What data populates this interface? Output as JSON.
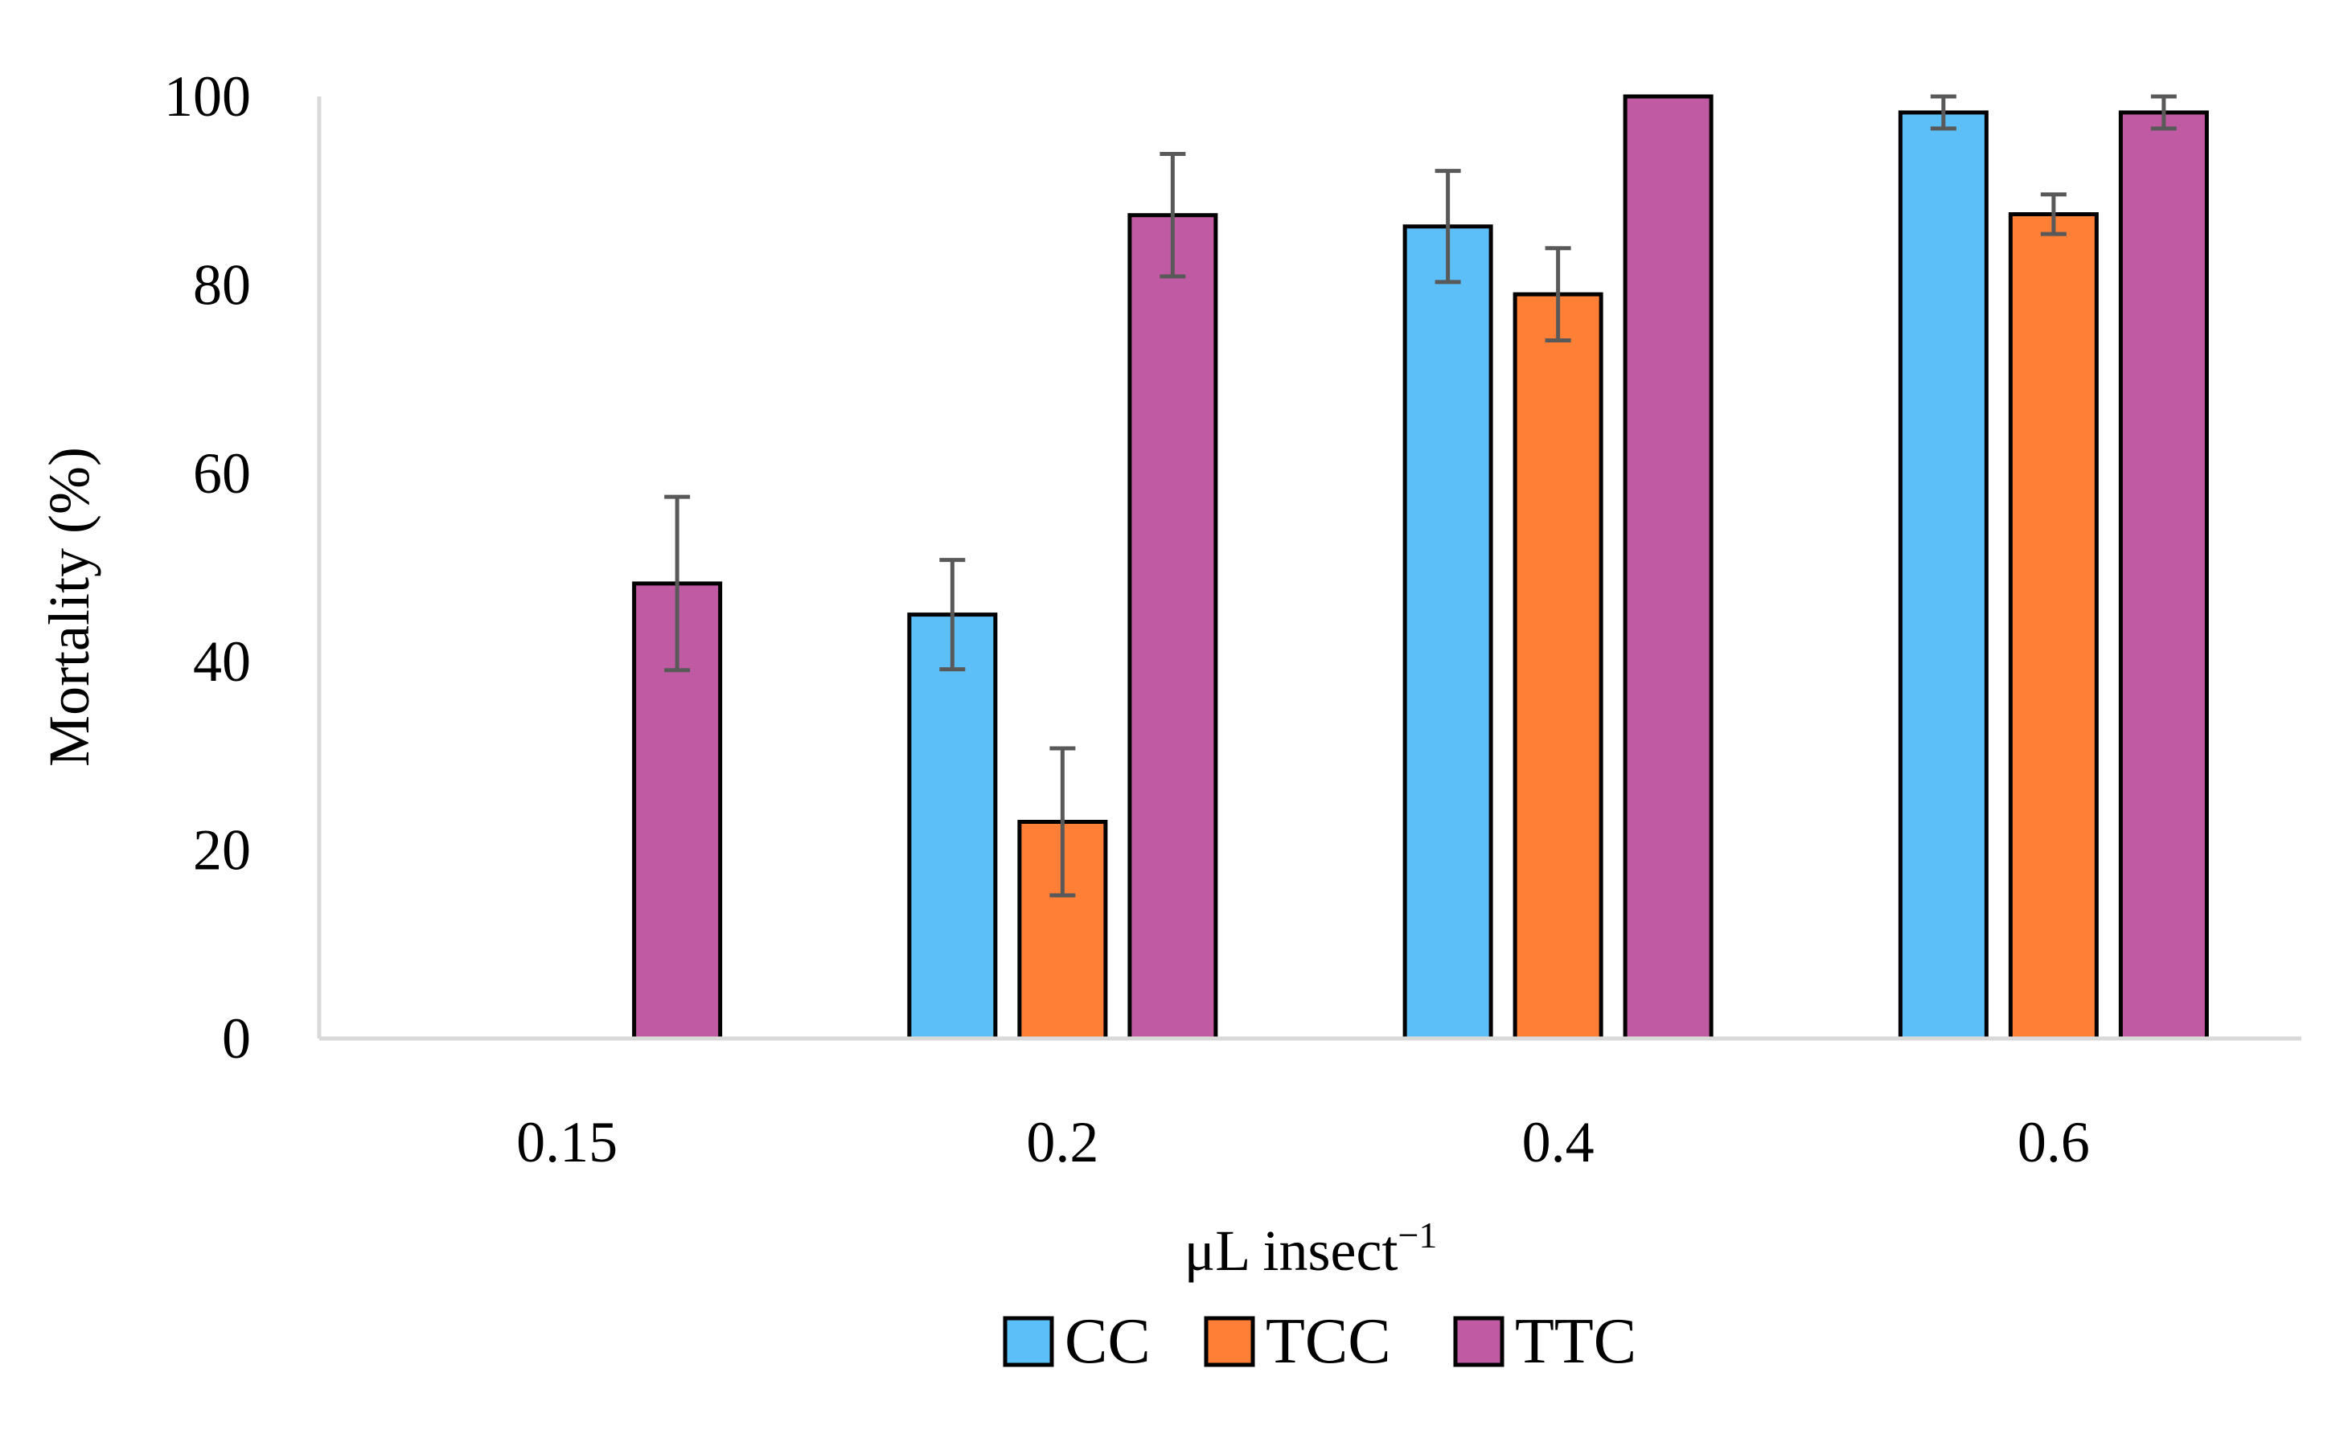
{
  "chart_data": {
    "type": "bar",
    "title": "",
    "xlabel": "μL insect",
    "xlabel_superscript": "−1",
    "ylabel": "Mortality (%)",
    "ylim": [
      0,
      100
    ],
    "yticks": [
      0,
      20,
      40,
      60,
      80,
      100
    ],
    "grid": false,
    "legend_position": "bottom-center",
    "categories": [
      "0.15",
      "0.2",
      "0.4",
      "0.6"
    ],
    "series": [
      {
        "name": "CC",
        "color": "#5DBFF8",
        "values": [
          null,
          45,
          86.2,
          98.3
        ],
        "errors": [
          null,
          5.8,
          5.9,
          1.7
        ]
      },
      {
        "name": "TCC",
        "color": "#FF7F36",
        "values": [
          null,
          23,
          79,
          87.5
        ],
        "errors": [
          null,
          7.8,
          4.9,
          2.1
        ]
      },
      {
        "name": "TTC",
        "color": "#C05BA3",
        "values": [
          48.3,
          87.4,
          100,
          98.3
        ],
        "errors": [
          9.2,
          6.5,
          0,
          1.7
        ]
      }
    ]
  }
}
